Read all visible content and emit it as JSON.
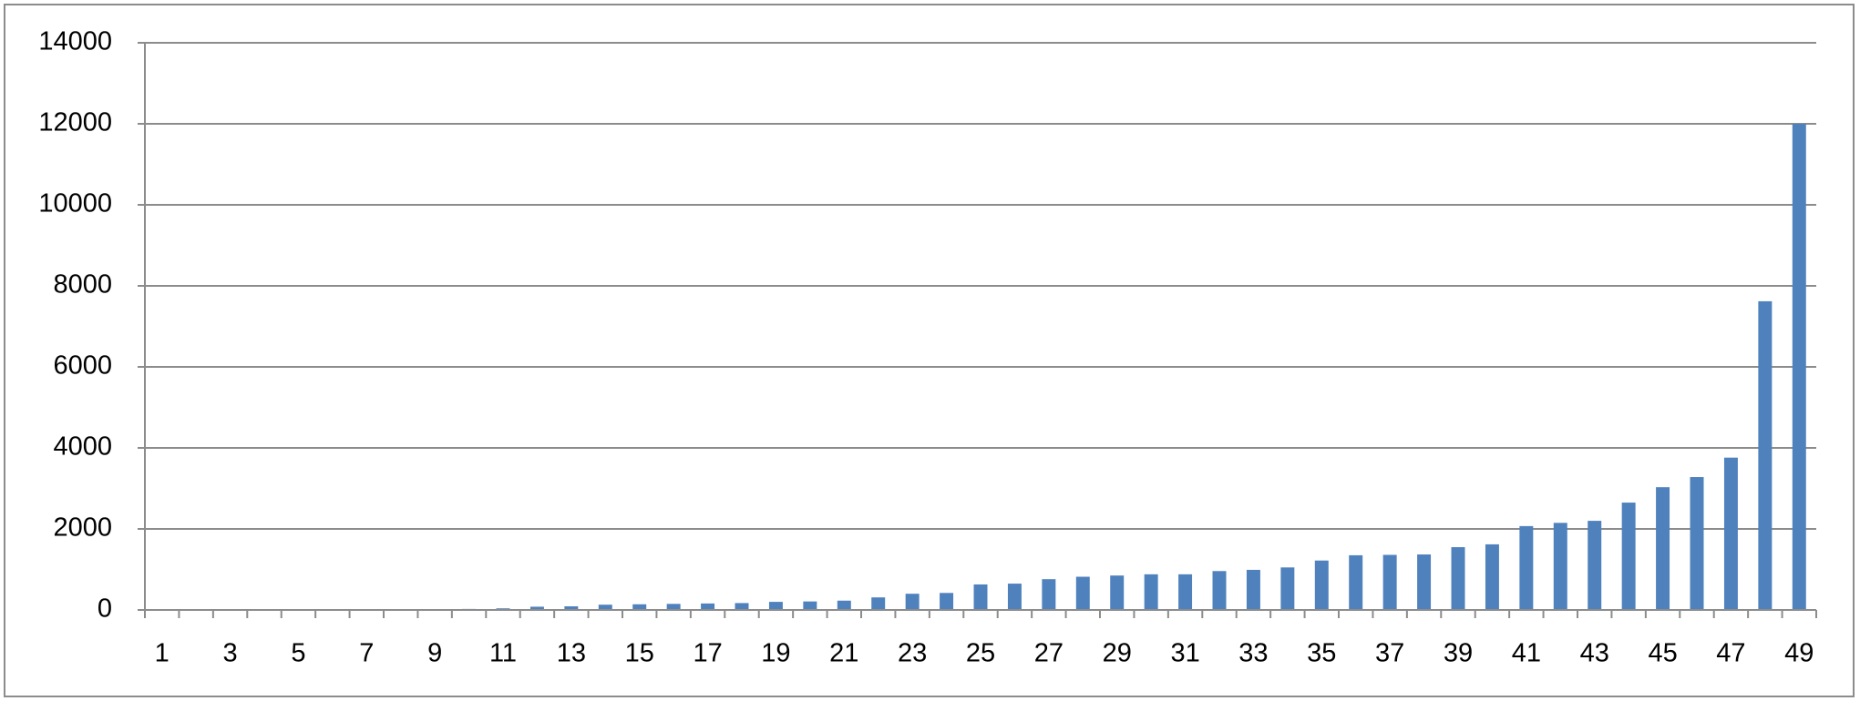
{
  "chart_data": {
    "type": "bar",
    "categories": [
      "1",
      null,
      "3",
      null,
      "5",
      null,
      "7",
      null,
      "9",
      null,
      "11",
      null,
      "13",
      null,
      "15",
      null,
      "17",
      null,
      "19",
      null,
      "21",
      null,
      "23",
      null,
      "25",
      null,
      "27",
      null,
      "29",
      null,
      "31",
      null,
      "33",
      null,
      "35",
      null,
      "37",
      null,
      "39",
      null,
      "41",
      null,
      "43",
      null,
      "45",
      null,
      "47",
      null,
      "49"
    ],
    "values": [
      0,
      0,
      0,
      0,
      0,
      5,
      10,
      15,
      20,
      25,
      40,
      80,
      90,
      130,
      140,
      150,
      160,
      170,
      200,
      210,
      230,
      310,
      400,
      420,
      630,
      650,
      760,
      820,
      850,
      880,
      880,
      960,
      990,
      1050,
      1220,
      1350,
      1360,
      1370,
      1550,
      1620,
      2070,
      2150,
      2200,
      2650,
      3030,
      3280,
      3760,
      7620,
      12000
    ],
    "color": "#4f81bd",
    "ylim": [
      0,
      14000
    ],
    "yticks": [
      0,
      2000,
      4000,
      6000,
      8000,
      10000,
      12000,
      14000
    ],
    "grid": true
  }
}
